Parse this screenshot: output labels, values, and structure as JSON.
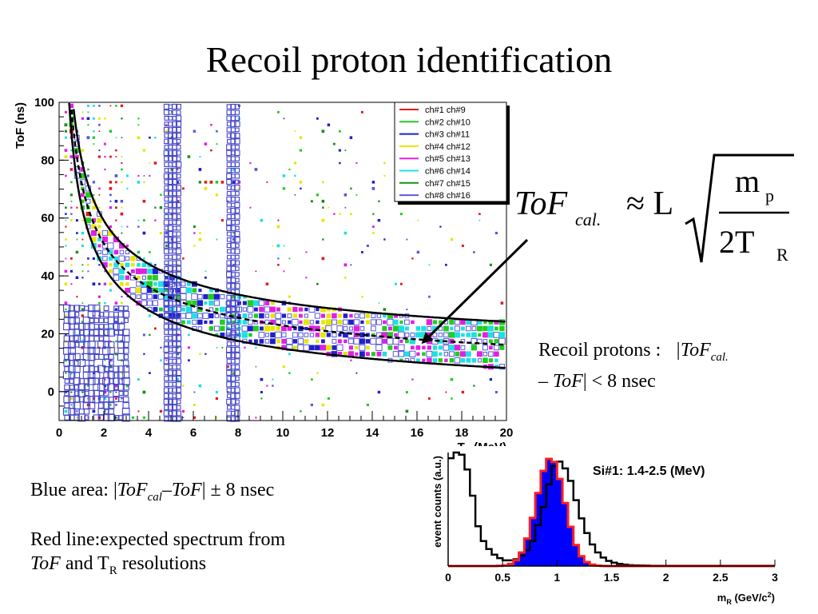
{
  "slide": {
    "title": "Recoil proton identification",
    "formula": {
      "lhs_main": "ToF",
      "lhs_sub": "cal.",
      "approx": "≈ L",
      "numerator_main": "m",
      "numerator_sub": "p",
      "denominator_main": "2T",
      "denominator_sub": "R"
    },
    "recoil_note": {
      "line1_prefix": "Recoil protons :",
      "line1_var": "|ToF",
      "line1_sub": "cal.",
      "line2_prefix": "–",
      "line2_var": "ToF",
      "line2_rest": "| < 8  nsec"
    },
    "blue_note": {
      "prefix": "Blue area:  |",
      "var1": "ToF",
      "var1_sub": "cal",
      "dash": "–",
      "var2": "ToF",
      "rest": "| ± 8 nsec"
    },
    "red_note": {
      "line1": "Red line:expected spectrum from",
      "var": "ToF",
      "mid": "  and T",
      "sub": "R",
      "rest": " resolutions"
    }
  },
  "chart_data": [
    {
      "type": "scatter",
      "subtype": "2d-box-histogram",
      "title": "",
      "xlabel": "T_R (MeV)",
      "ylabel": "ToF (ns)",
      "xlim": [
        0,
        20
      ],
      "ylim": [
        -10,
        100
      ],
      "xticks": [
        "0",
        "2",
        "4",
        "6",
        "8",
        "10",
        "12",
        "14",
        "16",
        "18",
        "20"
      ],
      "yticks": [
        "0",
        "20",
        "40",
        "60",
        "80",
        "100"
      ],
      "legend_position": "top-right",
      "series": [
        {
          "name": "ch#1 ch#9",
          "color": "#e31a1c"
        },
        {
          "name": "ch#2 ch#10",
          "color": "#22cc22"
        },
        {
          "name": "ch#3 ch#11",
          "color": "#1f1fcc"
        },
        {
          "name": "ch#4 ch#12",
          "color": "#e6e600"
        },
        {
          "name": "ch#5 ch#13",
          "color": "#e020e0"
        },
        {
          "name": "ch#6 ch#14",
          "color": "#1fe0e0"
        },
        {
          "name": "ch#7 ch#15",
          "color": "#1a8f1a"
        },
        {
          "name": "ch#8 ch#16",
          "color": "#5a5adc"
        }
      ],
      "curves": {
        "expected_tof": "ToF = 72.3 / sqrt(T_R)",
        "band": "±8 ns",
        "band_lower_clip_start_T": 0.4
      },
      "vertical_stripes_T": [
        [
          4.8,
          5.4
        ],
        [
          7.6,
          8.1
        ]
      ],
      "arrow_target": {
        "T": 16.2,
        "ToF": 16.5
      },
      "arrow_source": {
        "label": "formula ToF_cal."
      }
    },
    {
      "type": "bar",
      "subtype": "histogram",
      "title": "Si#1: 1.4-2.5 (MeV)",
      "xlabel": "m_R (GeV/c²)",
      "ylabel": "event counts (a.u.)",
      "xlim": [
        0,
        3
      ],
      "ylim": [
        0,
        1.0
      ],
      "xticks": [
        "0",
        "0.5",
        "1",
        "1.5",
        "2",
        "2.5",
        "3"
      ],
      "bin_width": 0.05,
      "bin_start": 0.0,
      "data_counts": [
        0.95,
        1.0,
        0.98,
        0.85,
        0.62,
        0.35,
        0.22,
        0.15,
        0.1,
        0.07,
        0.05,
        0.05,
        0.06,
        0.09,
        0.14,
        0.22,
        0.36,
        0.52,
        0.72,
        0.88,
        0.92,
        0.86,
        0.75,
        0.58,
        0.42,
        0.29,
        0.19,
        0.12,
        0.075,
        0.045,
        0.03,
        0.02,
        0.012,
        0.008,
        0.006,
        0.005,
        0.004,
        0.003,
        0.003,
        0.003,
        0.003,
        0.003,
        0.003,
        0.003,
        0.003,
        0.003,
        0.003,
        0.003,
        0.003,
        0.003,
        0.003,
        0.003,
        0.003,
        0.003,
        0.003,
        0.003,
        0.003,
        0.003,
        0.003,
        0.003
      ],
      "fill_color": "#0000ff",
      "expected_line_color": "#ff1f1f",
      "data_line_color": "#000000",
      "expected_gaussian": {
        "mean": 0.94,
        "sigma": 0.13,
        "peak": 0.95
      }
    }
  ]
}
